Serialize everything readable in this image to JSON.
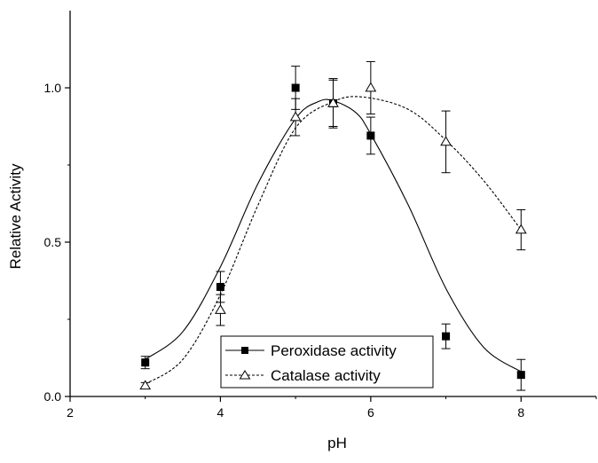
{
  "chart_data": {
    "type": "scatter",
    "title": "",
    "xlabel": "pH",
    "ylabel": "Relative Activity",
    "xlim": [
      2,
      9
    ],
    "ylim": [
      0,
      1.25
    ],
    "x_ticks": [
      2,
      4,
      6,
      8
    ],
    "x_tick_labels": [
      "2",
      "4",
      "6",
      "8"
    ],
    "y_ticks": [
      0.0,
      0.5,
      1.0
    ],
    "y_tick_labels": [
      "0.0",
      "0.5",
      "1.0"
    ],
    "grid": false,
    "legend_position": "bottom-center",
    "series": [
      {
        "name": "Peroxidase activity",
        "marker": "filled-square",
        "line_style": "solid",
        "points": [
          {
            "x": 3,
            "y": 0.11,
            "err": 0.02
          },
          {
            "x": 4,
            "y": 0.355,
            "err": 0.05
          },
          {
            "x": 5,
            "y": 1.0,
            "err": 0.07
          },
          {
            "x": 5.5,
            "y": 0.95,
            "err": 0.075
          },
          {
            "x": 6,
            "y": 0.845,
            "err": 0.06
          },
          {
            "x": 7,
            "y": 0.195,
            "err": 0.04
          },
          {
            "x": 8,
            "y": 0.07,
            "err": 0.05
          }
        ],
        "fit_curve": [
          [
            3,
            0.12
          ],
          [
            3.5,
            0.21
          ],
          [
            4,
            0.42
          ],
          [
            4.5,
            0.69
          ],
          [
            5,
            0.9
          ],
          [
            5.3,
            0.955
          ],
          [
            5.5,
            0.958
          ],
          [
            5.8,
            0.92
          ],
          [
            6,
            0.85
          ],
          [
            6.5,
            0.62
          ],
          [
            7,
            0.35
          ],
          [
            7.5,
            0.16
          ],
          [
            8,
            0.08
          ]
        ]
      },
      {
        "name": "Catalase activity",
        "marker": "open-triangle",
        "line_style": "dashed",
        "points": [
          {
            "x": 3,
            "y": 0.035,
            "err": 0.01
          },
          {
            "x": 4,
            "y": 0.28,
            "err": 0.05
          },
          {
            "x": 5,
            "y": 0.905,
            "err": 0.06
          },
          {
            "x": 5.5,
            "y": 0.95,
            "err": 0.08
          },
          {
            "x": 6,
            "y": 1.0,
            "err": 0.085
          },
          {
            "x": 7,
            "y": 0.825,
            "err": 0.1
          },
          {
            "x": 8,
            "y": 0.54,
            "err": 0.065
          }
        ],
        "fit_curve": [
          [
            3,
            0.04
          ],
          [
            3.5,
            0.12
          ],
          [
            4,
            0.33
          ],
          [
            4.5,
            0.62
          ],
          [
            5,
            0.87
          ],
          [
            5.5,
            0.955
          ],
          [
            5.9,
            0.97
          ],
          [
            6.5,
            0.93
          ],
          [
            7,
            0.83
          ],
          [
            7.5,
            0.7
          ],
          [
            8,
            0.54
          ]
        ]
      }
    ]
  }
}
